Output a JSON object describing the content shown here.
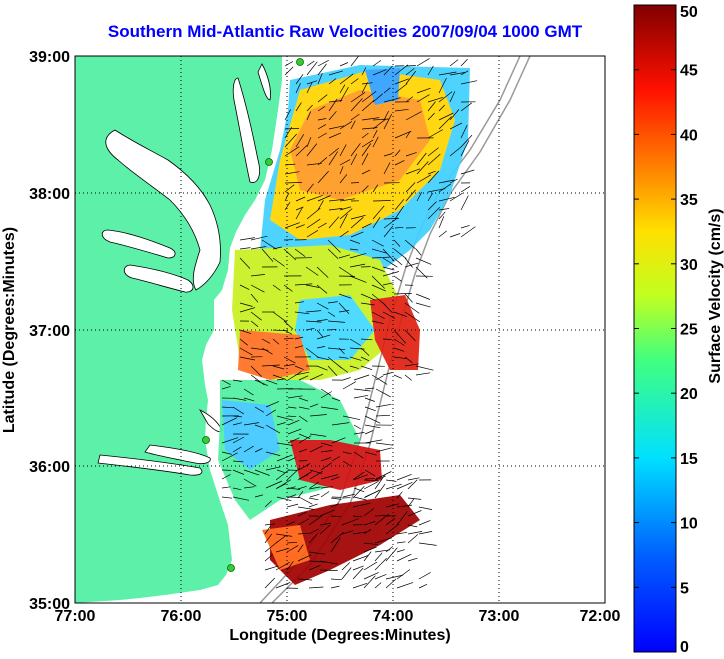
{
  "title": "Southern Mid-Atlantic Raw Velocities 2007/09/04 1000 GMT",
  "x_axis": {
    "label": "Longitude (Degrees:Minutes)",
    "ticks": [
      "77:00",
      "76:00",
      "75:00",
      "74:00",
      "73:00",
      "72:00"
    ]
  },
  "y_axis": {
    "label": "Latitude (Degrees:Minutes)",
    "ticks": [
      "39:00",
      "38:00",
      "37:00",
      "36:00",
      "35:00"
    ]
  },
  "colorbar": {
    "label": "Surface Velocity (cm/s)",
    "ticks": [
      "50",
      "45",
      "40",
      "35",
      "30",
      "25",
      "20",
      "15",
      "10",
      "5",
      "0"
    ],
    "min": 0,
    "max": 50,
    "colormap": "jet"
  },
  "map": {
    "lon_range": [
      -77,
      -72
    ],
    "lat_range": [
      35,
      39
    ],
    "grid": true,
    "land_color": "#5cf0a8",
    "radar_site_color": "#33cc33"
  }
}
